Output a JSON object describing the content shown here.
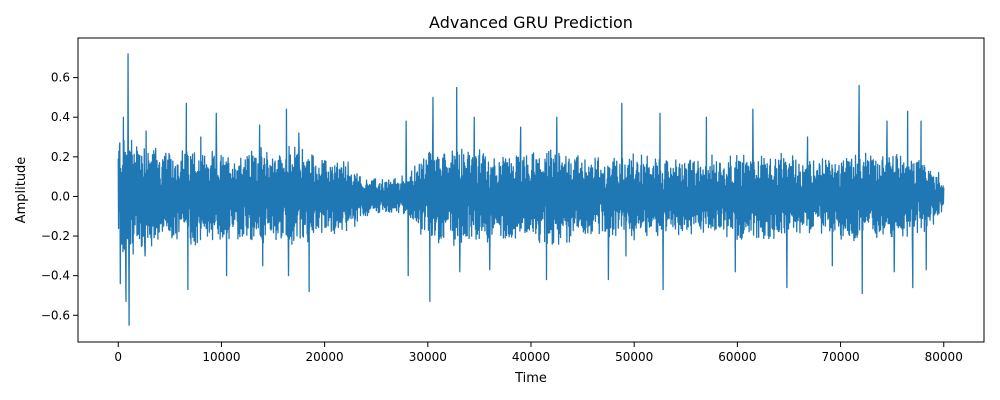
{
  "chart_data": {
    "type": "line",
    "title": "Advanced GRU Prediction",
    "xlabel": "Time",
    "ylabel": "Amplitude",
    "xlim": [
      -3900,
      83900
    ],
    "ylim": [
      -0.735,
      0.8
    ],
    "x_ticks": [
      0,
      10000,
      20000,
      30000,
      40000,
      50000,
      60000,
      70000,
      80000
    ],
    "y_ticks": [
      -0.6,
      -0.4,
      -0.2,
      0.0,
      0.2,
      0.4,
      0.6
    ],
    "x_tick_labels": [
      "0",
      "10000",
      "20000",
      "30000",
      "40000",
      "50000",
      "60000",
      "70000",
      "80000"
    ],
    "y_tick_labels": [
      "−0.6",
      "−0.4",
      "−0.2",
      "0.0",
      "0.2",
      "0.4",
      "0.6"
    ],
    "grid": false,
    "color": "#1f77b4",
    "series": [
      {
        "x_range": [
          0,
          80000
        ],
        "envelope": {
          "x": [
            0,
            1000,
            3000,
            5000,
            7000,
            9000,
            11000,
            13000,
            16000,
            17500,
            20000,
            22000,
            24000,
            26000,
            28000,
            30000,
            33000,
            36000,
            40000,
            43000,
            46000,
            50000,
            53000,
            56000,
            60000,
            63000,
            66000,
            69000,
            72000,
            75000,
            78000,
            80000
          ],
          "amp": [
            0.28,
            0.3,
            0.26,
            0.2,
            0.24,
            0.2,
            0.2,
            0.22,
            0.22,
            0.24,
            0.17,
            0.17,
            0.09,
            0.08,
            0.1,
            0.22,
            0.24,
            0.2,
            0.2,
            0.22,
            0.18,
            0.2,
            0.18,
            0.18,
            0.2,
            0.2,
            0.18,
            0.18,
            0.22,
            0.2,
            0.18,
            0.06
          ]
        },
        "peaks": [
          {
            "x": 150,
            "y": 0.27
          },
          {
            "x": 200,
            "y": -0.44
          },
          {
            "x": 500,
            "y": 0.4
          },
          {
            "x": 750,
            "y": -0.53
          },
          {
            "x": 950,
            "y": 0.72
          },
          {
            "x": 1050,
            "y": -0.65
          },
          {
            "x": 2700,
            "y": 0.33
          },
          {
            "x": 2600,
            "y": -0.3
          },
          {
            "x": 6600,
            "y": 0.47
          },
          {
            "x": 6750,
            "y": -0.47
          },
          {
            "x": 8000,
            "y": 0.3
          },
          {
            "x": 9500,
            "y": 0.42
          },
          {
            "x": 10500,
            "y": -0.4
          },
          {
            "x": 13700,
            "y": 0.36
          },
          {
            "x": 14000,
            "y": -0.35
          },
          {
            "x": 16300,
            "y": 0.44
          },
          {
            "x": 16500,
            "y": -0.4
          },
          {
            "x": 18500,
            "y": -0.48
          },
          {
            "x": 17500,
            "y": 0.32
          },
          {
            "x": 27900,
            "y": 0.38
          },
          {
            "x": 28100,
            "y": -0.4
          },
          {
            "x": 30200,
            "y": -0.53
          },
          {
            "x": 30500,
            "y": 0.5
          },
          {
            "x": 32800,
            "y": 0.55
          },
          {
            "x": 33100,
            "y": -0.38
          },
          {
            "x": 34500,
            "y": 0.4
          },
          {
            "x": 36000,
            "y": -0.37
          },
          {
            "x": 39000,
            "y": 0.35
          },
          {
            "x": 41500,
            "y": -0.42
          },
          {
            "x": 42500,
            "y": 0.4
          },
          {
            "x": 47500,
            "y": -0.42
          },
          {
            "x": 48800,
            "y": 0.47
          },
          {
            "x": 49200,
            "y": -0.3
          },
          {
            "x": 52500,
            "y": 0.42
          },
          {
            "x": 52800,
            "y": -0.47
          },
          {
            "x": 57000,
            "y": 0.4
          },
          {
            "x": 59800,
            "y": -0.38
          },
          {
            "x": 61500,
            "y": 0.44
          },
          {
            "x": 64800,
            "y": -0.46
          },
          {
            "x": 66800,
            "y": 0.3
          },
          {
            "x": 69200,
            "y": -0.35
          },
          {
            "x": 71800,
            "y": 0.56
          },
          {
            "x": 72100,
            "y": -0.49
          },
          {
            "x": 74500,
            "y": 0.38
          },
          {
            "x": 75200,
            "y": -0.38
          },
          {
            "x": 76500,
            "y": 0.43
          },
          {
            "x": 77000,
            "y": -0.46
          },
          {
            "x": 77800,
            "y": 0.38
          },
          {
            "x": 78300,
            "y": -0.37
          },
          {
            "x": 79500,
            "y": 0.12
          },
          {
            "x": 79000,
            "y": -0.14
          }
        ]
      }
    ]
  }
}
